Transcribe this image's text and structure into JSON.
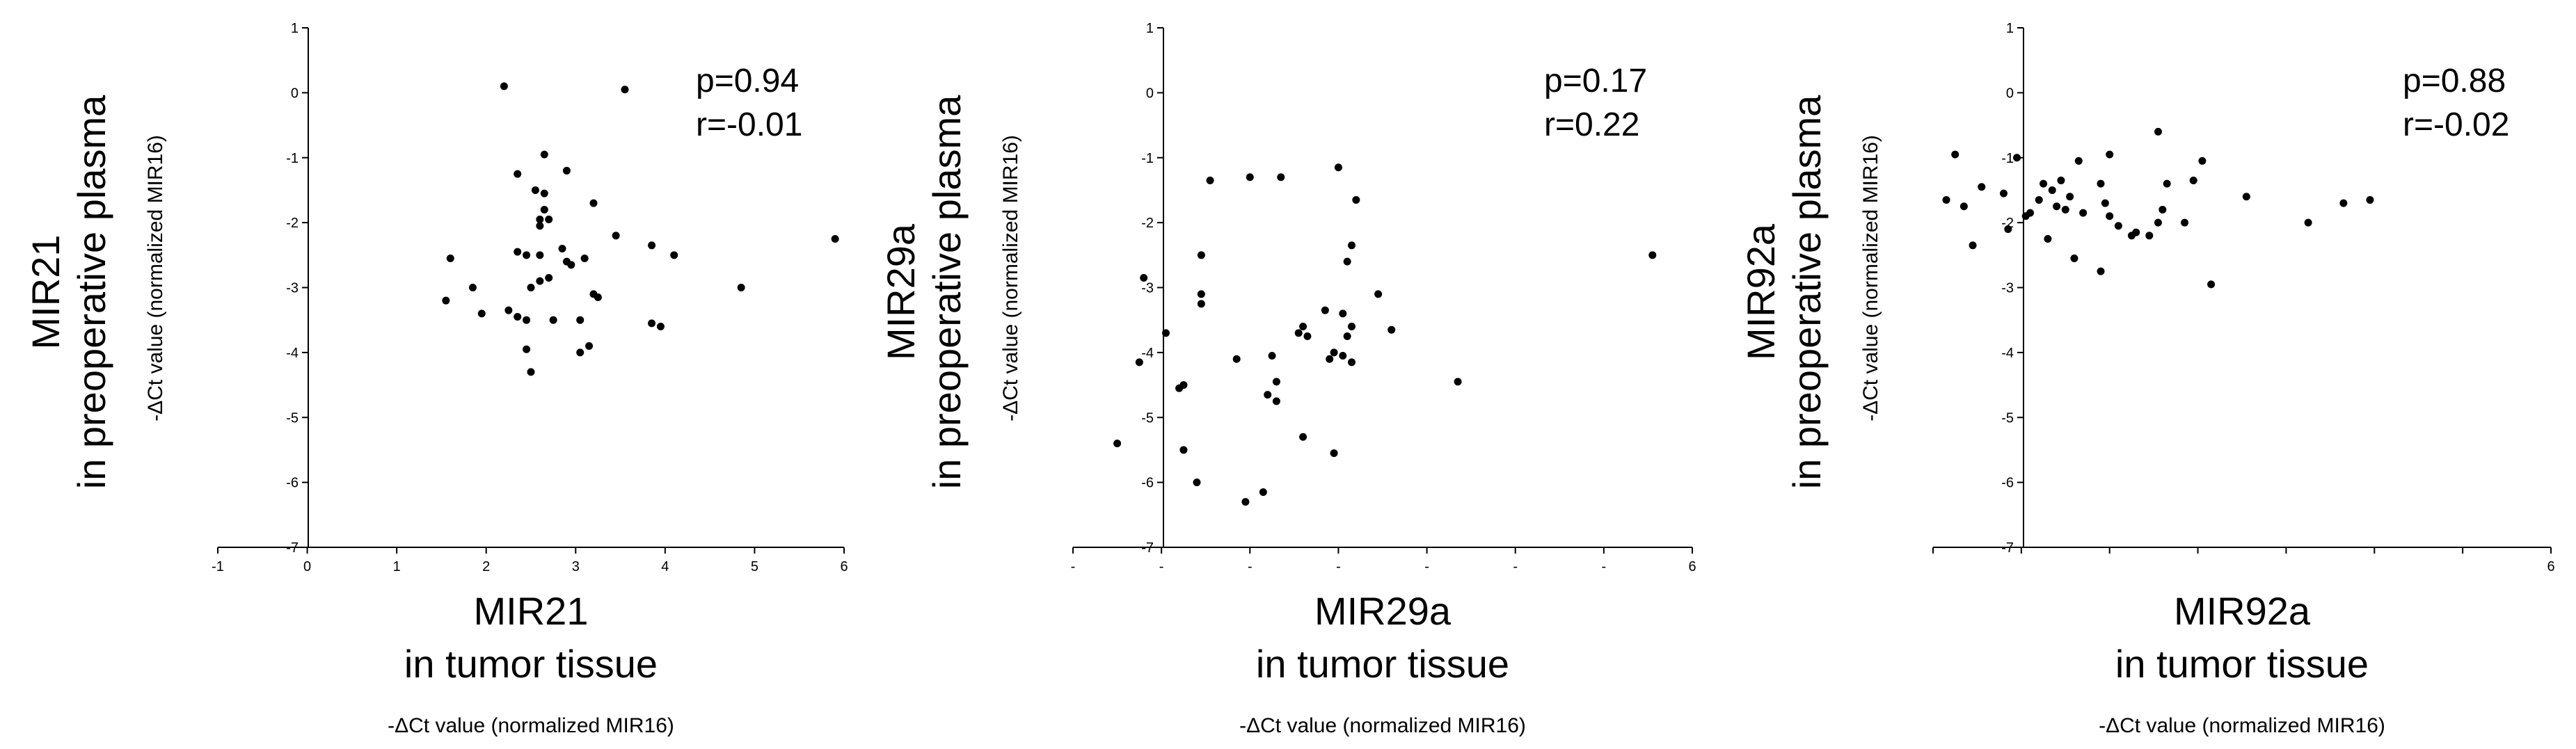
{
  "chart_data": [
    {
      "type": "scatter",
      "ylabel_main": [
        "MIR21",
        "in preoperative plasma"
      ],
      "ylabel_sub": "-ΔCt value (normalized MIR16)",
      "xlabel_main": [
        "MIR21",
        "in tumor tissue"
      ],
      "xlabel_sub": "-ΔCt value (normalized MIR16)",
      "stats": [
        "p=0.94",
        "r=-0.01"
      ],
      "xlim": [
        -1,
        6
      ],
      "ylim": [
        -7,
        1
      ],
      "xticks": [
        "-1",
        "0",
        "1",
        "2",
        "3",
        "4",
        "5",
        "6"
      ],
      "yticks": [
        "1",
        "0",
        "-1",
        "-2",
        "-3",
        "-4",
        "-5",
        "-6",
        "-7"
      ],
      "points": [
        [
          2.2,
          0.1
        ],
        [
          3.55,
          0.05
        ],
        [
          2.65,
          -0.95
        ],
        [
          2.35,
          -1.25
        ],
        [
          2.9,
          -1.2
        ],
        [
          2.65,
          -1.55
        ],
        [
          2.55,
          -1.5
        ],
        [
          3.2,
          -1.7
        ],
        [
          2.65,
          -1.8
        ],
        [
          2.6,
          -1.95
        ],
        [
          2.7,
          -1.95
        ],
        [
          2.6,
          -2.05
        ],
        [
          3.45,
          -2.2
        ],
        [
          3.85,
          -2.35
        ],
        [
          4.1,
          -2.5
        ],
        [
          5.9,
          -2.25
        ],
        [
          1.6,
          -2.55
        ],
        [
          2.35,
          -2.45
        ],
        [
          2.45,
          -2.5
        ],
        [
          2.6,
          -2.5
        ],
        [
          2.85,
          -2.4
        ],
        [
          2.9,
          -2.6
        ],
        [
          3.1,
          -2.55
        ],
        [
          2.95,
          -2.65
        ],
        [
          2.7,
          -2.85
        ],
        [
          2.6,
          -2.9
        ],
        [
          2.5,
          -3.0
        ],
        [
          1.85,
          -3.0
        ],
        [
          3.2,
          -3.1
        ],
        [
          3.25,
          -3.15
        ],
        [
          4.85,
          -3.0
        ],
        [
          1.55,
          -3.2
        ],
        [
          1.95,
          -3.4
        ],
        [
          2.25,
          -3.35
        ],
        [
          2.35,
          -3.45
        ],
        [
          2.45,
          -3.5
        ],
        [
          2.75,
          -3.5
        ],
        [
          3.05,
          -3.5
        ],
        [
          3.85,
          -3.55
        ],
        [
          3.95,
          -3.6
        ],
        [
          2.45,
          -3.95
        ],
        [
          3.15,
          -3.9
        ],
        [
          3.05,
          -4.0
        ],
        [
          2.5,
          -4.3
        ]
      ]
    },
    {
      "type": "scatter",
      "ylabel_main": [
        "MIR29a",
        "in preoperative plasma"
      ],
      "ylabel_sub": "-ΔCt value (normalized MIR16)",
      "xlabel_main": [
        "MIR29a",
        "in tumor tissue"
      ],
      "xlabel_sub": "-ΔCt value (normalized MIR16)",
      "stats": [
        "p=0.17",
        "r=0.22"
      ],
      "xlim": [
        -1,
        6
      ],
      "ylim": [
        -7,
        1
      ],
      "xticks": [
        "-",
        "-",
        "-",
        "-",
        "-",
        "-",
        "-",
        "6"
      ],
      "yticks": [
        "1",
        "0",
        "-1",
        "-2",
        "-3",
        "-4",
        "-5",
        "-6",
        "-7"
      ],
      "points": [
        [
          0.55,
          -1.35
        ],
        [
          1.0,
          -1.3
        ],
        [
          1.35,
          -1.3
        ],
        [
          2.0,
          -1.15
        ],
        [
          2.2,
          -1.65
        ],
        [
          0.45,
          -2.5
        ],
        [
          2.15,
          -2.35
        ],
        [
          2.1,
          -2.6
        ],
        [
          -0.2,
          -2.85
        ],
        [
          0.45,
          -3.1
        ],
        [
          0.45,
          -3.25
        ],
        [
          2.45,
          -3.1
        ],
        [
          1.85,
          -3.35
        ],
        [
          2.05,
          -3.4
        ],
        [
          1.6,
          -3.6
        ],
        [
          1.55,
          -3.7
        ],
        [
          1.65,
          -3.75
        ],
        [
          2.15,
          -3.6
        ],
        [
          2.1,
          -3.75
        ],
        [
          2.6,
          -3.65
        ],
        [
          0.05,
          -3.7
        ],
        [
          1.95,
          -4.0
        ],
        [
          1.9,
          -4.1
        ],
        [
          2.05,
          -4.05
        ],
        [
          2.15,
          -4.15
        ],
        [
          0.85,
          -4.1
        ],
        [
          1.25,
          -4.05
        ],
        [
          -0.25,
          -4.15
        ],
        [
          1.3,
          -4.45
        ],
        [
          0.25,
          -4.5
        ],
        [
          0.2,
          -4.55
        ],
        [
          1.2,
          -4.65
        ],
        [
          1.3,
          -4.75
        ],
        [
          3.35,
          -4.45
        ],
        [
          1.6,
          -5.3
        ],
        [
          1.95,
          -5.55
        ],
        [
          -0.5,
          -5.4
        ],
        [
          0.25,
          -5.5
        ],
        [
          0.4,
          -6.0
        ],
        [
          1.15,
          -6.15
        ],
        [
          0.95,
          -6.3
        ],
        [
          5.55,
          -2.5
        ]
      ]
    },
    {
      "type": "scatter",
      "ylabel_main": [
        "MIR92a",
        "in preoperative plasma"
      ],
      "ylabel_sub": "-ΔCt value (normalized MIR16)",
      "xlabel_main": [
        "MIR92a",
        "in tumor tissue"
      ],
      "xlabel_sub": "-ΔCt value (normalized MIR16)",
      "stats": [
        "p=0.88",
        "r=-0.02"
      ],
      "xlim": [
        -1,
        6
      ],
      "ylim": [
        -7,
        1
      ],
      "xticks": [
        "",
        "",
        "",
        "",
        "",
        "",
        "",
        "6"
      ],
      "yticks": [
        "1",
        "0",
        "-1",
        "-2",
        "-3",
        "-4",
        "-5",
        "-6",
        "-7"
      ],
      "points": [
        [
          -0.85,
          -1.65
        ],
        [
          -0.65,
          -1.75
        ],
        [
          -0.45,
          -1.45
        ],
        [
          -0.2,
          -1.55
        ],
        [
          -0.15,
          -2.1
        ],
        [
          0.05,
          -1.9
        ],
        [
          0.1,
          -1.85
        ],
        [
          0.2,
          -1.65
        ],
        [
          0.25,
          -1.4
        ],
        [
          0.35,
          -1.5
        ],
        [
          0.4,
          -1.75
        ],
        [
          0.45,
          -1.35
        ],
        [
          0.5,
          -1.8
        ],
        [
          0.55,
          -1.6
        ],
        [
          0.6,
          -2.55
        ],
        [
          0.3,
          -2.25
        ],
        [
          0.7,
          -1.85
        ],
        [
          0.9,
          -1.4
        ],
        [
          0.95,
          -1.7
        ],
        [
          1.0,
          -1.9
        ],
        [
          1.1,
          -2.05
        ],
        [
          1.25,
          -2.2
        ],
        [
          1.3,
          -2.15
        ],
        [
          1.45,
          -2.2
        ],
        [
          1.55,
          -2.0
        ],
        [
          1.6,
          -1.8
        ],
        [
          1.65,
          -1.4
        ],
        [
          1.85,
          -2.0
        ],
        [
          1.95,
          -1.35
        ],
        [
          2.05,
          -1.05
        ],
        [
          2.15,
          -2.95
        ],
        [
          2.55,
          -1.6
        ],
        [
          3.25,
          -2.0
        ],
        [
          3.65,
          -1.7
        ],
        [
          3.95,
          -1.65
        ],
        [
          -0.55,
          -2.35
        ],
        [
          -0.05,
          -1.0
        ],
        [
          0.65,
          -1.05
        ],
        [
          1.0,
          -0.95
        ],
        [
          1.55,
          -0.6
        ],
        [
          -0.75,
          -0.95
        ],
        [
          0.9,
          -2.75
        ]
      ]
    }
  ]
}
